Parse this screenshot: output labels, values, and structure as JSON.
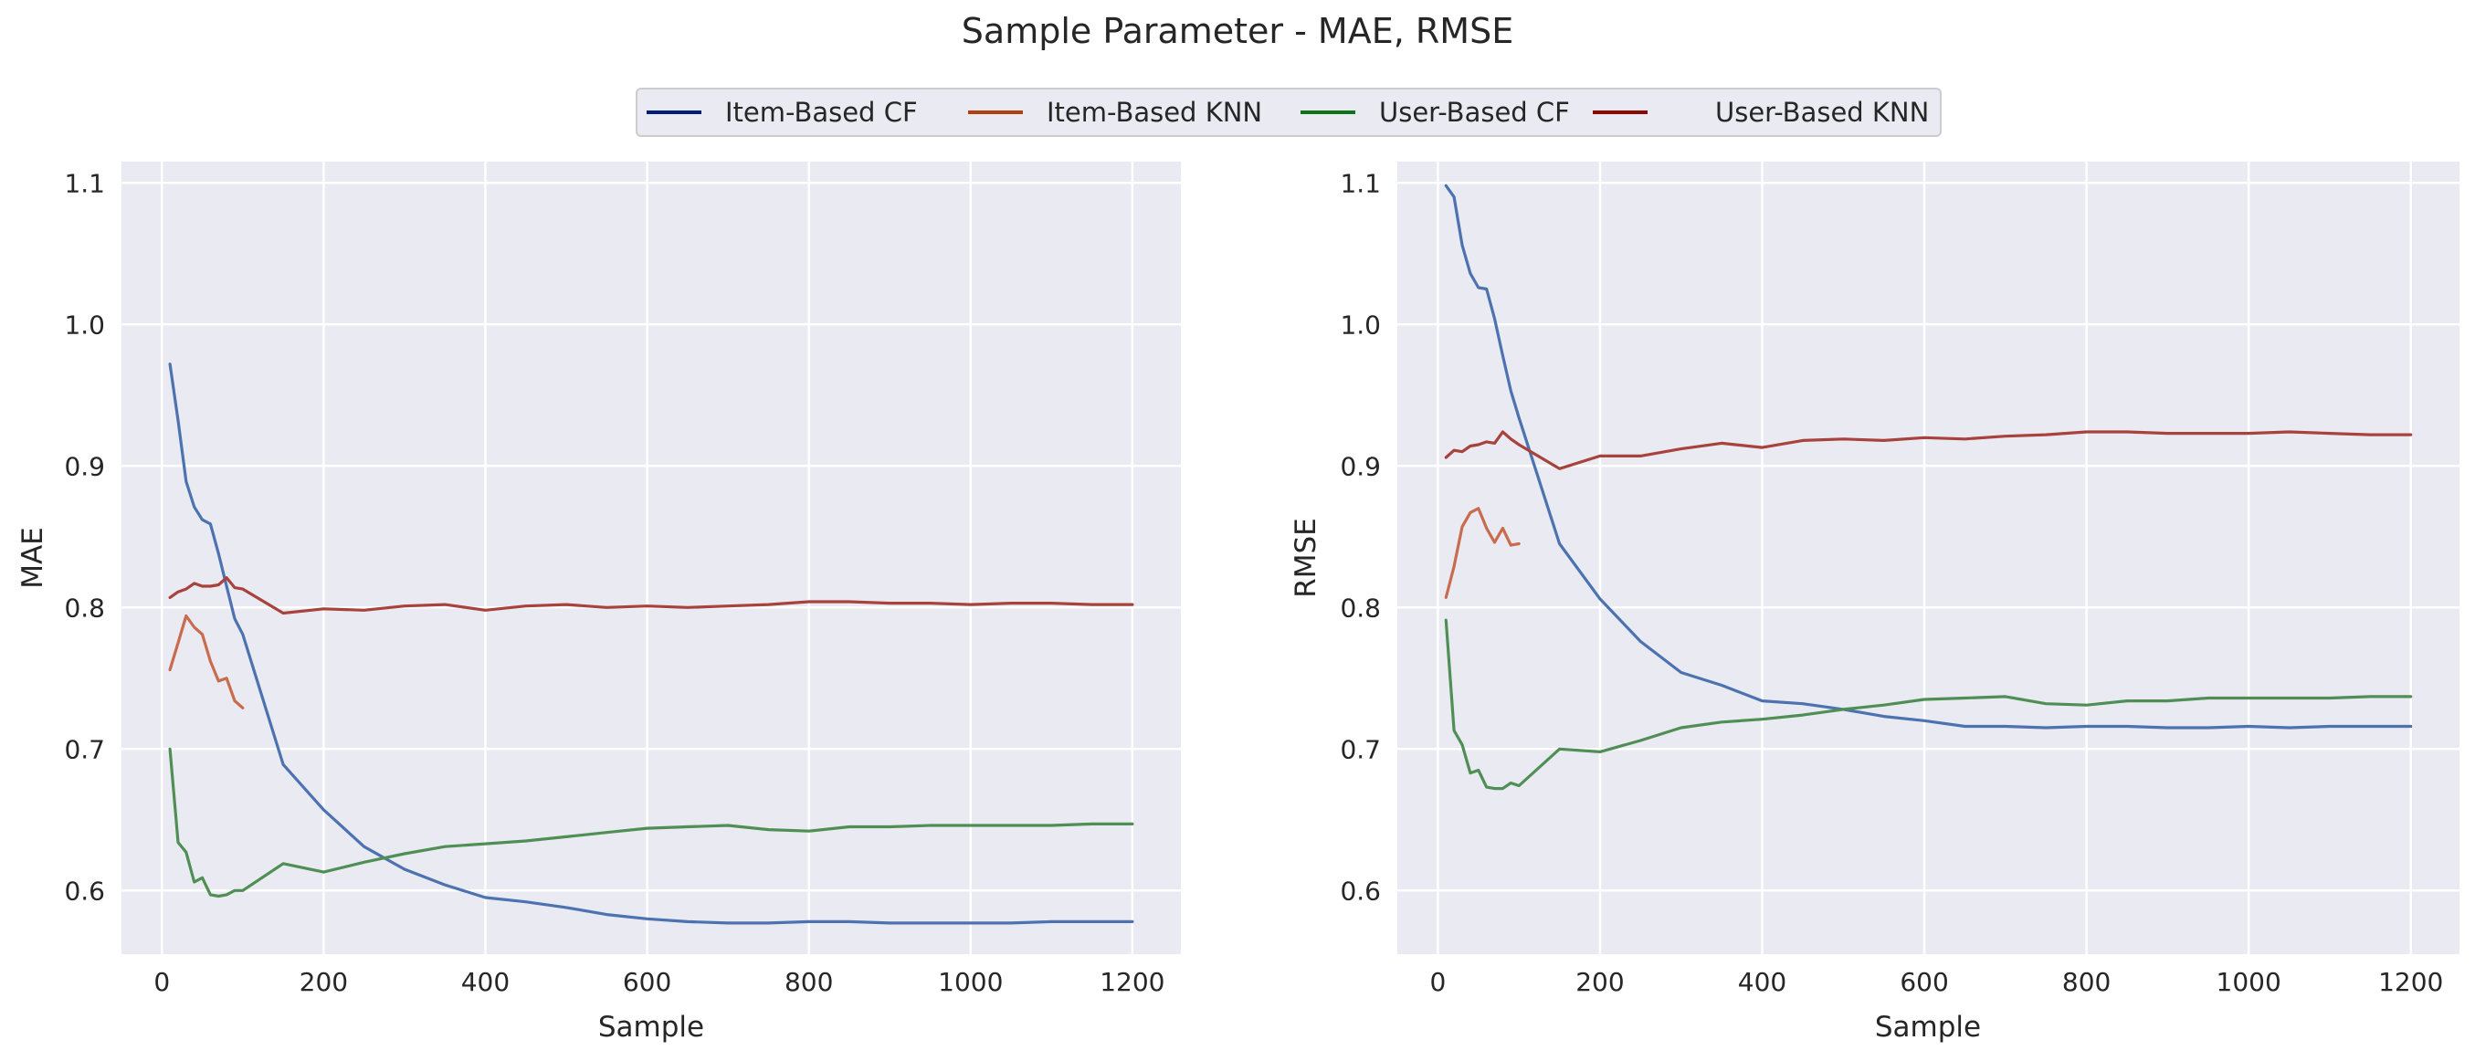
{
  "figure": {
    "title": "Sample Parameter - MAE, RMSE"
  },
  "colors": {
    "panel_bg": "#EAEAF2",
    "grid": "#FFFFFF",
    "text": "#262626",
    "legend_item_based_cf": "#001C7F",
    "legend_item_based_knn": "#B1400D",
    "legend_user_based_cf": "#12711C",
    "legend_user_based_knn": "#8C0800"
  },
  "legend": {
    "placement": "top-center",
    "entries": [
      "Item-Based CF",
      "Item-Based KNN",
      "User-Based CF",
      "User-Based KNN"
    ]
  },
  "chart_data": [
    {
      "type": "line",
      "xlabel": "Sample",
      "ylabel": "MAE",
      "xlim": [
        -50,
        1260
      ],
      "ylim": [
        0.555,
        1.115
      ],
      "xticks": [
        0,
        200,
        400,
        600,
        800,
        1000,
        1200
      ],
      "yticks": [
        0.6,
        0.7,
        0.8,
        0.9,
        1.0,
        1.1
      ],
      "xtick_labels": [
        "0",
        "200",
        "400",
        "600",
        "800",
        "1000",
        "1200"
      ],
      "ytick_labels": [
        "0.6",
        "0.7",
        "0.8",
        "0.9",
        "1.0",
        "1.1"
      ],
      "grid": true,
      "series": [
        {
          "name": "Item-Based CF",
          "color": "#4C72B0",
          "x": [
            10,
            20,
            30,
            40,
            50,
            60,
            70,
            80,
            90,
            100,
            150,
            200,
            250,
            300,
            350,
            400,
            450,
            500,
            550,
            600,
            650,
            700,
            750,
            800,
            850,
            900,
            950,
            1000,
            1050,
            1100,
            1150,
            1200
          ],
          "y": [
            0.972,
            0.932,
            0.889,
            0.871,
            0.862,
            0.859,
            0.838,
            0.815,
            0.792,
            0.781,
            0.689,
            0.657,
            0.631,
            0.615,
            0.604,
            0.595,
            0.592,
            0.588,
            0.583,
            0.58,
            0.578,
            0.577,
            0.577,
            0.578,
            0.578,
            0.577,
            0.577,
            0.577,
            0.577,
            0.578,
            0.578,
            0.578
          ]
        },
        {
          "name": "Item-Based KNN",
          "color": "#C96B4E",
          "x": [
            10,
            20,
            30,
            40,
            50,
            60,
            70,
            80,
            90,
            100
          ],
          "y": [
            0.756,
            0.775,
            0.794,
            0.786,
            0.781,
            0.762,
            0.748,
            0.75,
            0.734,
            0.729
          ]
        },
        {
          "name": "User-Based CF",
          "color": "#4F8F55",
          "x": [
            10,
            20,
            30,
            40,
            50,
            60,
            70,
            80,
            90,
            100,
            150,
            200,
            250,
            300,
            350,
            400,
            450,
            500,
            550,
            600,
            650,
            700,
            750,
            800,
            850,
            900,
            950,
            1000,
            1050,
            1100,
            1150,
            1200
          ],
          "y": [
            0.7,
            0.634,
            0.627,
            0.606,
            0.609,
            0.597,
            0.596,
            0.597,
            0.6,
            0.6,
            0.619,
            0.613,
            0.62,
            0.626,
            0.631,
            0.633,
            0.635,
            0.638,
            0.641,
            0.644,
            0.645,
            0.646,
            0.643,
            0.642,
            0.645,
            0.645,
            0.646,
            0.646,
            0.646,
            0.646,
            0.647,
            0.647
          ]
        },
        {
          "name": "User-Based KNN",
          "color": "#A8423D",
          "x": [
            10,
            20,
            30,
            40,
            50,
            60,
            70,
            80,
            90,
            100,
            150,
            200,
            250,
            300,
            350,
            400,
            450,
            500,
            550,
            600,
            650,
            700,
            750,
            800,
            850,
            900,
            950,
            1000,
            1050,
            1100,
            1150,
            1200
          ],
          "y": [
            0.807,
            0.811,
            0.813,
            0.817,
            0.815,
            0.815,
            0.816,
            0.821,
            0.814,
            0.813,
            0.796,
            0.799,
            0.798,
            0.801,
            0.802,
            0.798,
            0.801,
            0.802,
            0.8,
            0.801,
            0.8,
            0.801,
            0.802,
            0.804,
            0.804,
            0.803,
            0.803,
            0.802,
            0.803,
            0.803,
            0.802,
            0.802
          ]
        }
      ]
    },
    {
      "type": "line",
      "xlabel": "Sample",
      "ylabel": "RMSE",
      "xlim": [
        -50,
        1260
      ],
      "ylim": [
        0.555,
        1.115
      ],
      "xticks": [
        0,
        200,
        400,
        600,
        800,
        1000,
        1200
      ],
      "yticks": [
        0.6,
        0.7,
        0.8,
        0.9,
        1.0,
        1.1
      ],
      "xtick_labels": [
        "0",
        "200",
        "400",
        "600",
        "800",
        "1000",
        "1200"
      ],
      "ytick_labels": [
        "0.6",
        "0.7",
        "0.8",
        "0.9",
        "1.0",
        "1.1"
      ],
      "grid": true,
      "series": [
        {
          "name": "Item-Based CF",
          "color": "#4C72B0",
          "x": [
            10,
            20,
            30,
            40,
            50,
            60,
            70,
            80,
            90,
            100,
            150,
            200,
            250,
            300,
            350,
            400,
            450,
            500,
            550,
            600,
            650,
            700,
            750,
            800,
            850,
            900,
            950,
            1000,
            1050,
            1100,
            1150,
            1200
          ],
          "y": [
            1.098,
            1.09,
            1.056,
            1.036,
            1.026,
            1.025,
            1.004,
            0.978,
            0.953,
            0.934,
            0.845,
            0.806,
            0.776,
            0.754,
            0.745,
            0.734,
            0.732,
            0.728,
            0.723,
            0.72,
            0.716,
            0.716,
            0.715,
            0.716,
            0.716,
            0.715,
            0.715,
            0.716,
            0.715,
            0.716,
            0.716,
            0.716
          ]
        },
        {
          "name": "Item-Based KNN",
          "color": "#C96B4E",
          "x": [
            10,
            20,
            30,
            40,
            50,
            60,
            70,
            80,
            90,
            100
          ],
          "y": [
            0.807,
            0.829,
            0.857,
            0.867,
            0.87,
            0.856,
            0.846,
            0.856,
            0.844,
            0.845
          ]
        },
        {
          "name": "User-Based CF",
          "color": "#4F8F55",
          "x": [
            10,
            20,
            30,
            40,
            50,
            60,
            70,
            80,
            90,
            100,
            150,
            200,
            250,
            300,
            350,
            400,
            450,
            500,
            550,
            600,
            650,
            700,
            750,
            800,
            850,
            900,
            950,
            1000,
            1050,
            1100,
            1150,
            1200
          ],
          "y": [
            0.791,
            0.713,
            0.703,
            0.683,
            0.685,
            0.673,
            0.672,
            0.672,
            0.676,
            0.674,
            0.7,
            0.698,
            0.706,
            0.715,
            0.719,
            0.721,
            0.724,
            0.728,
            0.731,
            0.735,
            0.736,
            0.737,
            0.732,
            0.731,
            0.734,
            0.734,
            0.736,
            0.736,
            0.736,
            0.736,
            0.737,
            0.737
          ]
        },
        {
          "name": "User-Based KNN",
          "color": "#A8423D",
          "x": [
            10,
            20,
            30,
            40,
            50,
            60,
            70,
            80,
            90,
            100,
            150,
            200,
            250,
            300,
            350,
            400,
            450,
            500,
            550,
            600,
            650,
            700,
            750,
            800,
            850,
            900,
            950,
            1000,
            1050,
            1100,
            1150,
            1200
          ],
          "y": [
            0.906,
            0.911,
            0.91,
            0.914,
            0.915,
            0.917,
            0.916,
            0.924,
            0.919,
            0.915,
            0.898,
            0.907,
            0.907,
            0.912,
            0.916,
            0.913,
            0.918,
            0.919,
            0.918,
            0.92,
            0.919,
            0.921,
            0.922,
            0.924,
            0.924,
            0.923,
            0.923,
            0.923,
            0.924,
            0.923,
            0.922,
            0.922
          ]
        }
      ]
    }
  ]
}
